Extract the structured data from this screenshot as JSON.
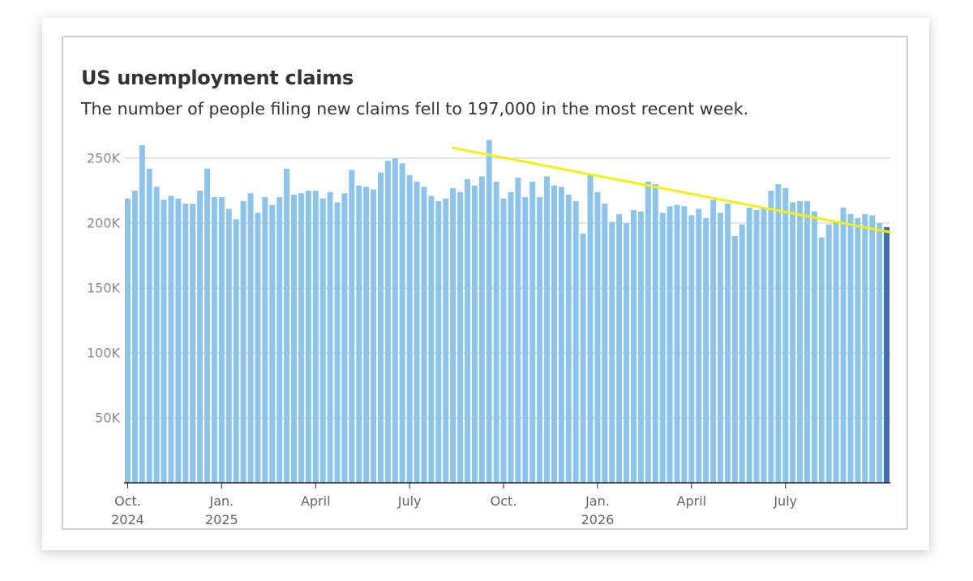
{
  "header": {
    "title": "US unemployment claims",
    "subtitle": "The number of people filing new claims fell to 197,000 in the most recent week."
  },
  "colors": {
    "bar": "#8dc4ec",
    "bar_latest": "#3e6db0",
    "trendline": "#f7ee12",
    "grid": "#c8c8c8",
    "axis": "#222222"
  },
  "chart_data": {
    "type": "bar",
    "title": "US unemployment claims",
    "subtitle": "The number of people filing new claims fell to 197,000 in the most recent week.",
    "xlabel": "",
    "ylabel": "",
    "ylim": [
      0,
      250000
    ],
    "yticks": [
      50000,
      100000,
      150000,
      200000,
      250000
    ],
    "ytick_labels": [
      "50K",
      "100K",
      "150K",
      "200K",
      "250K"
    ],
    "grid": true,
    "x_tick_labels": [
      {
        "label": "Oct.",
        "sub": "2024",
        "index": 0
      },
      {
        "label": "Jan.",
        "sub": "2025",
        "index": 13
      },
      {
        "label": "April",
        "sub": "",
        "index": 26
      },
      {
        "label": "July",
        "sub": "",
        "index": 39
      },
      {
        "label": "Oct.",
        "sub": "",
        "index": 52
      },
      {
        "label": "Jan.",
        "sub": "2026",
        "index": 65
      },
      {
        "label": "April",
        "sub": "",
        "index": 78
      },
      {
        "label": "July",
        "sub": "",
        "index": 91
      }
    ],
    "values": [
      219000,
      225000,
      260000,
      242000,
      228000,
      218000,
      221000,
      219000,
      215000,
      215000,
      225000,
      242000,
      220000,
      220000,
      211000,
      203000,
      217000,
      223000,
      208000,
      220000,
      214000,
      220000,
      242000,
      222000,
      223000,
      225000,
      225000,
      219000,
      224000,
      216000,
      223000,
      241000,
      229000,
      228000,
      226000,
      239000,
      248000,
      250000,
      246000,
      237000,
      232000,
      228000,
      221000,
      217000,
      219000,
      227000,
      224000,
      234000,
      229000,
      236000,
      264000,
      232000,
      219000,
      224000,
      235000,
      220000,
      232000,
      220000,
      236000,
      229000,
      228000,
      222000,
      217000,
      192000,
      237000,
      224000,
      215000,
      201000,
      207000,
      200000,
      210000,
      209000,
      232000,
      230000,
      208000,
      213000,
      214000,
      213000,
      206000,
      211000,
      204000,
      218000,
      208000,
      215000,
      190000,
      199000,
      212000,
      210000,
      212000,
      225000,
      230000,
      227000,
      216000,
      217000,
      217000,
      209000,
      189000,
      199000,
      201000,
      212000,
      207000,
      204000,
      207000,
      206000,
      200000,
      197000
    ],
    "highlight_last": true,
    "trendline": {
      "start_index": 45.5,
      "start_value": 258000,
      "end_index": 106,
      "end_value": 193000
    }
  }
}
